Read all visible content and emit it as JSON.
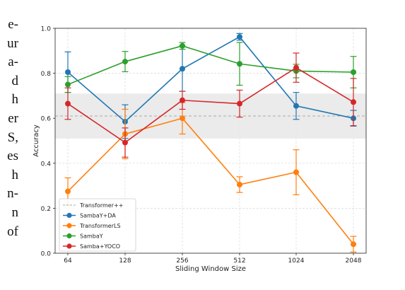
{
  "side_text_lines": [
    "e-",
    "ur",
    "a-",
    "d",
    "h",
    "er",
    "S,",
    "es",
    "h",
    "n-",
    "n",
    "of"
  ],
  "caption_fragment": "",
  "chart_data": {
    "type": "line",
    "title": "",
    "xlabel": "Sliding Window Size",
    "ylabel": "Accuracy",
    "categories": [
      "64",
      "128",
      "256",
      "512",
      "1024",
      "2048"
    ],
    "ylim": [
      0.0,
      1.0
    ],
    "yticks": [
      "0.0",
      "0.2",
      "0.4",
      "0.6",
      "0.8",
      "1.0"
    ],
    "grid": true,
    "legend_position": "lower-left",
    "reference": {
      "name": "Transformer++",
      "value": 0.61,
      "band": [
        0.51,
        0.71
      ],
      "color": "#aaaaaa"
    },
    "series": [
      {
        "name": "SambaY+DA",
        "color": "#1f77b4",
        "values": [
          0.805,
          0.585,
          0.82,
          0.962,
          0.655,
          0.6
        ],
        "err": [
          0.09,
          0.075,
          0.1,
          0.015,
          0.06,
          0.035
        ]
      },
      {
        "name": "TransformerLS",
        "color": "#ff7f0e",
        "values": [
          0.275,
          0.53,
          0.6,
          0.305,
          0.36,
          0.04
        ],
        "err": [
          0.06,
          0.11,
          0.07,
          0.035,
          0.1,
          0.035
        ]
      },
      {
        "name": "SambaY",
        "color": "#2ca02c",
        "values": [
          0.75,
          0.852,
          0.922,
          0.842,
          0.81,
          0.805
        ],
        "err": [
          0.035,
          0.045,
          0.015,
          0.095,
          0.03,
          0.07
        ]
      },
      {
        "name": "Samba+YOCO",
        "color": "#d62728",
        "values": [
          0.665,
          0.492,
          0.68,
          0.665,
          0.825,
          0.672
        ],
        "err": [
          0.07,
          0.065,
          0.04,
          0.06,
          0.065,
          0.105
        ]
      }
    ]
  }
}
